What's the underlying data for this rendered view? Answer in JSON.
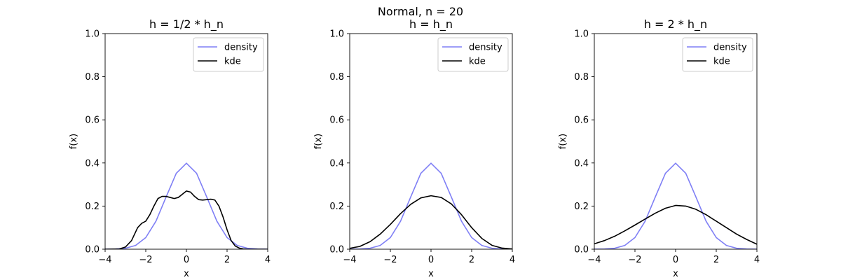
{
  "figure": {
    "suptitle": "Normal, n = 20"
  },
  "chart_data": [
    {
      "type": "line",
      "title": "h = 1/2 * h_n",
      "xlabel": "x",
      "ylabel": "f(x)",
      "xlim": [
        -4,
        4
      ],
      "ylim": [
        0,
        1
      ],
      "xticks": [
        -4,
        -2,
        0,
        2,
        4
      ],
      "yticks": [
        0.0,
        0.2,
        0.4,
        0.6,
        0.8,
        1.0
      ],
      "legend_position": "top-right",
      "series": [
        {
          "name": "density",
          "color": "#7f7ff5",
          "x": [
            -4.0,
            -3.5,
            -3.0,
            -2.5,
            -2.0,
            -1.5,
            -1.0,
            -0.5,
            0.0,
            0.5,
            1.0,
            1.5,
            2.0,
            2.5,
            3.0,
            3.5,
            4.0
          ],
          "y": [
            0.0001,
            0.0009,
            0.0044,
            0.0175,
            0.054,
            0.1295,
            0.242,
            0.3521,
            0.3989,
            0.3521,
            0.242,
            0.1295,
            0.054,
            0.0175,
            0.0044,
            0.0009,
            0.0001
          ]
        },
        {
          "name": "kde",
          "color": "#000000",
          "x": [
            -4.0,
            -3.3,
            -3.0,
            -2.7,
            -2.4,
            -2.2,
            -2.0,
            -1.8,
            -1.6,
            -1.4,
            -1.2,
            -1.0,
            -0.8,
            -0.6,
            -0.4,
            -0.2,
            0.0,
            0.2,
            0.4,
            0.6,
            0.8,
            1.0,
            1.2,
            1.4,
            1.6,
            1.8,
            2.0,
            2.2,
            2.4,
            2.6,
            2.8,
            3.0,
            4.0
          ],
          "y": [
            0.0,
            0.001,
            0.01,
            0.04,
            0.1,
            0.12,
            0.13,
            0.16,
            0.2,
            0.235,
            0.245,
            0.245,
            0.24,
            0.235,
            0.24,
            0.255,
            0.27,
            0.265,
            0.245,
            0.23,
            0.228,
            0.23,
            0.232,
            0.228,
            0.2,
            0.15,
            0.09,
            0.04,
            0.015,
            0.005,
            0.001,
            0.0,
            0.0
          ]
        }
      ]
    },
    {
      "type": "line",
      "title": "h = h_n",
      "xlabel": "x",
      "ylabel": "f(x)",
      "xlim": [
        -4,
        4
      ],
      "ylim": [
        0,
        1
      ],
      "xticks": [
        -4,
        -2,
        0,
        2,
        4
      ],
      "yticks": [
        0.0,
        0.2,
        0.4,
        0.6,
        0.8,
        1.0
      ],
      "legend_position": "top-right",
      "series": [
        {
          "name": "density",
          "color": "#7f7ff5",
          "x": [
            -4.0,
            -3.5,
            -3.0,
            -2.5,
            -2.0,
            -1.5,
            -1.0,
            -0.5,
            0.0,
            0.5,
            1.0,
            1.5,
            2.0,
            2.5,
            3.0,
            3.5,
            4.0
          ],
          "y": [
            0.0001,
            0.0009,
            0.0044,
            0.0175,
            0.054,
            0.1295,
            0.242,
            0.3521,
            0.3989,
            0.3521,
            0.242,
            0.1295,
            0.054,
            0.0175,
            0.0044,
            0.0009,
            0.0001
          ]
        },
        {
          "name": "kde",
          "color": "#000000",
          "x": [
            -4.0,
            -3.5,
            -3.0,
            -2.5,
            -2.0,
            -1.5,
            -1.0,
            -0.5,
            0.0,
            0.5,
            1.0,
            1.5,
            2.0,
            2.5,
            3.0,
            3.5,
            4.0
          ],
          "y": [
            0.004,
            0.013,
            0.035,
            0.07,
            0.115,
            0.165,
            0.208,
            0.238,
            0.248,
            0.24,
            0.21,
            0.16,
            0.1,
            0.05,
            0.018,
            0.005,
            0.001
          ]
        }
      ]
    },
    {
      "type": "line",
      "title": "h = 2 * h_n",
      "xlabel": "x",
      "ylabel": "f(x)",
      "xlim": [
        -4,
        4
      ],
      "ylim": [
        0,
        1
      ],
      "xticks": [
        -4,
        -2,
        0,
        2,
        4
      ],
      "yticks": [
        0.0,
        0.2,
        0.4,
        0.6,
        0.8,
        1.0
      ],
      "legend_position": "top-right",
      "series": [
        {
          "name": "density",
          "color": "#7f7ff5",
          "x": [
            -4.0,
            -3.5,
            -3.0,
            -2.5,
            -2.0,
            -1.5,
            -1.0,
            -0.5,
            0.0,
            0.5,
            1.0,
            1.5,
            2.0,
            2.5,
            3.0,
            3.5,
            4.0
          ],
          "y": [
            0.0001,
            0.0009,
            0.0044,
            0.0175,
            0.054,
            0.1295,
            0.242,
            0.3521,
            0.3989,
            0.3521,
            0.242,
            0.1295,
            0.054,
            0.0175,
            0.0044,
            0.0009,
            0.0001
          ]
        },
        {
          "name": "kde",
          "color": "#000000",
          "x": [
            -4.0,
            -3.5,
            -3.0,
            -2.5,
            -2.0,
            -1.5,
            -1.0,
            -0.5,
            0.0,
            0.5,
            1.0,
            1.5,
            2.0,
            2.5,
            3.0,
            3.5,
            4.0
          ],
          "y": [
            0.025,
            0.04,
            0.06,
            0.085,
            0.112,
            0.14,
            0.167,
            0.19,
            0.203,
            0.2,
            0.185,
            0.16,
            0.13,
            0.1,
            0.07,
            0.045,
            0.023
          ]
        }
      ]
    }
  ]
}
